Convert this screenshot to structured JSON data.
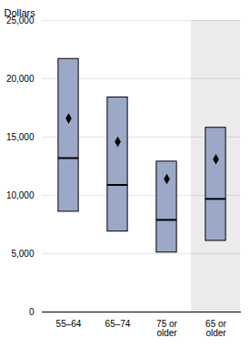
{
  "chart_data": {
    "type": "box",
    "ylabel": "Dollars",
    "categories": [
      "55–64",
      "65–74",
      "75 or\nolder",
      "65 or\nolder"
    ],
    "boxes": [
      {
        "q1": 8600,
        "median": 13200,
        "q3": 21700,
        "mean": 16600
      },
      {
        "q1": 6900,
        "median": 10900,
        "q3": 18400,
        "mean": 14600
      },
      {
        "q1": 5100,
        "median": 7900,
        "q3": 12900,
        "mean": 11400
      },
      {
        "q1": 6100,
        "median": 9700,
        "q3": 15800,
        "mean": 13100
      }
    ],
    "color": "#9ba8c8",
    "ylim": [
      0,
      25000
    ],
    "yticks": [
      0,
      {
        "value": 5000,
        "label": "5,000"
      },
      {
        "value": 10000,
        "label": "10,000"
      },
      {
        "value": 15000,
        "label": "15,000"
      },
      {
        "value": 20000,
        "label": "20,000"
      },
      {
        "value": 25000,
        "label": "25,000"
      }
    ],
    "grid": true
  }
}
